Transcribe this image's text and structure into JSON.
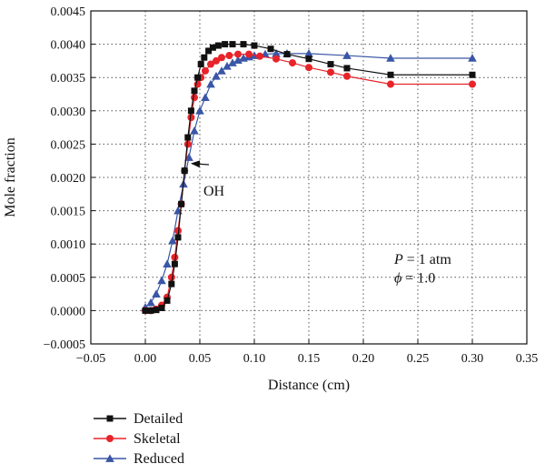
{
  "chart_data": {
    "type": "line",
    "xlabel": "Distance (cm)",
    "ylabel": "Mole fraction",
    "xlim": [
      -0.05,
      0.35
    ],
    "ylim": [
      -0.0005,
      0.0045
    ],
    "xticks": [
      -0.05,
      0.0,
      0.05,
      0.1,
      0.15,
      0.2,
      0.25,
      0.3,
      0.35
    ],
    "xtick_labels": [
      "−0.05",
      "0.00",
      "0.05",
      "0.10",
      "0.15",
      "0.20",
      "0.25",
      "0.30",
      "0.35"
    ],
    "yticks": [
      -0.0005,
      0.0,
      0.0005,
      0.001,
      0.0015,
      0.002,
      0.0025,
      0.003,
      0.0035,
      0.004,
      0.0045
    ],
    "ytick_labels": [
      "−0.0005",
      "0.0000",
      "0.0005",
      "0.0010",
      "0.0015",
      "0.0020",
      "0.0025",
      "0.0030",
      "0.0035",
      "0.0040",
      "0.0045"
    ],
    "grid": true,
    "legend_position": "bottom-left",
    "series": [
      {
        "name": "Detailed",
        "color": "#111111",
        "marker": "square",
        "x": [
          0.0,
          0.005,
          0.01,
          0.015,
          0.02,
          0.024,
          0.027,
          0.03,
          0.033,
          0.036,
          0.039,
          0.042,
          0.045,
          0.048,
          0.051,
          0.054,
          0.058,
          0.062,
          0.067,
          0.073,
          0.08,
          0.09,
          0.1,
          0.115,
          0.13,
          0.15,
          0.17,
          0.185,
          0.225,
          0.3
        ],
        "y": [
          0.0,
          0.0,
          1e-05,
          4e-05,
          0.00015,
          0.0004,
          0.0007,
          0.0011,
          0.0016,
          0.0021,
          0.0026,
          0.003,
          0.0033,
          0.0035,
          0.0037,
          0.0038,
          0.0039,
          0.00395,
          0.00398,
          0.004,
          0.004,
          0.004,
          0.00398,
          0.00393,
          0.00385,
          0.00378,
          0.0037,
          0.00364,
          0.00354,
          0.00354
        ]
      },
      {
        "name": "Skeletal",
        "color": "#e8232a",
        "marker": "circle",
        "x": [
          0.0,
          0.005,
          0.01,
          0.015,
          0.02,
          0.024,
          0.027,
          0.03,
          0.033,
          0.036,
          0.039,
          0.042,
          0.045,
          0.048,
          0.051,
          0.055,
          0.06,
          0.065,
          0.07,
          0.077,
          0.085,
          0.095,
          0.105,
          0.12,
          0.135,
          0.15,
          0.17,
          0.185,
          0.225,
          0.3
        ],
        "y": [
          0.0,
          0.0,
          2e-05,
          8e-05,
          0.0002,
          0.0005,
          0.0008,
          0.0012,
          0.0016,
          0.0021,
          0.0025,
          0.0029,
          0.0032,
          0.0034,
          0.0035,
          0.0036,
          0.0037,
          0.00375,
          0.0038,
          0.00383,
          0.00385,
          0.00385,
          0.00382,
          0.00378,
          0.00372,
          0.00365,
          0.00358,
          0.00352,
          0.0034,
          0.0034
        ]
      },
      {
        "name": "Reduced",
        "color": "#3a56a6",
        "marker": "triangle",
        "x": [
          0.0,
          0.005,
          0.01,
          0.015,
          0.02,
          0.025,
          0.03,
          0.035,
          0.04,
          0.045,
          0.05,
          0.055,
          0.06,
          0.065,
          0.07,
          0.075,
          0.08,
          0.085,
          0.09,
          0.095,
          0.1,
          0.11,
          0.12,
          0.13,
          0.15,
          0.185,
          0.225,
          0.3
        ],
        "y": [
          5e-05,
          0.00012,
          0.00025,
          0.00045,
          0.0007,
          0.00105,
          0.0015,
          0.0019,
          0.0023,
          0.0027,
          0.003,
          0.0032,
          0.0034,
          0.00352,
          0.0036,
          0.00367,
          0.00372,
          0.00376,
          0.00379,
          0.00381,
          0.00383,
          0.00385,
          0.00386,
          0.00386,
          0.00386,
          0.00383,
          0.00379,
          0.00379
        ]
      }
    ],
    "annotations": [
      {
        "text": "OH",
        "x": 0.065,
        "y": 0.002,
        "arrow_to": [
          0.04,
          0.00225
        ]
      },
      {
        "text_parts": [
          "P",
          " = 1 atm"
        ],
        "x": 0.225,
        "y": 0.0007
      },
      {
        "text_parts": [
          "ϕ",
          " = 1.0"
        ],
        "x": 0.225,
        "y": 0.00042
      }
    ]
  }
}
